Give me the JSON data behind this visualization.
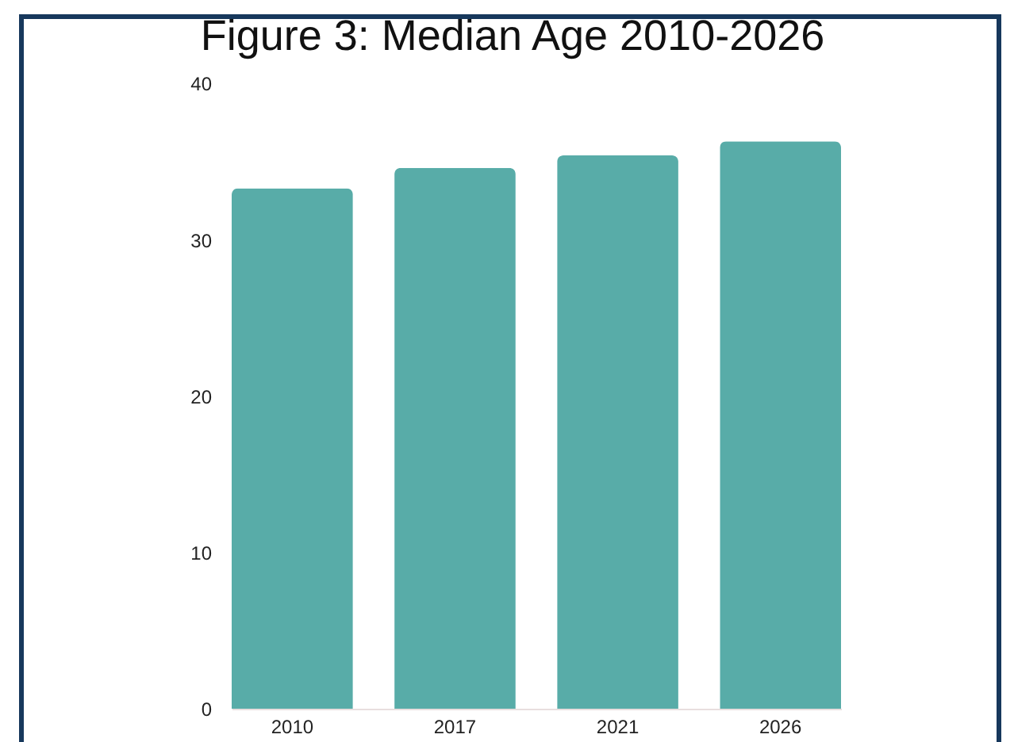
{
  "chart_data": {
    "type": "bar",
    "title": "Figure 3: Median Age 2010-2026",
    "categories": [
      "2010",
      "2017",
      "2021",
      "2026"
    ],
    "values": [
      33.3,
      34.6,
      35.4,
      36.3
    ],
    "color": "#58aca8",
    "ylim": [
      0,
      40
    ],
    "yticks": [
      0,
      10,
      20,
      30,
      40
    ],
    "grid": false
  }
}
